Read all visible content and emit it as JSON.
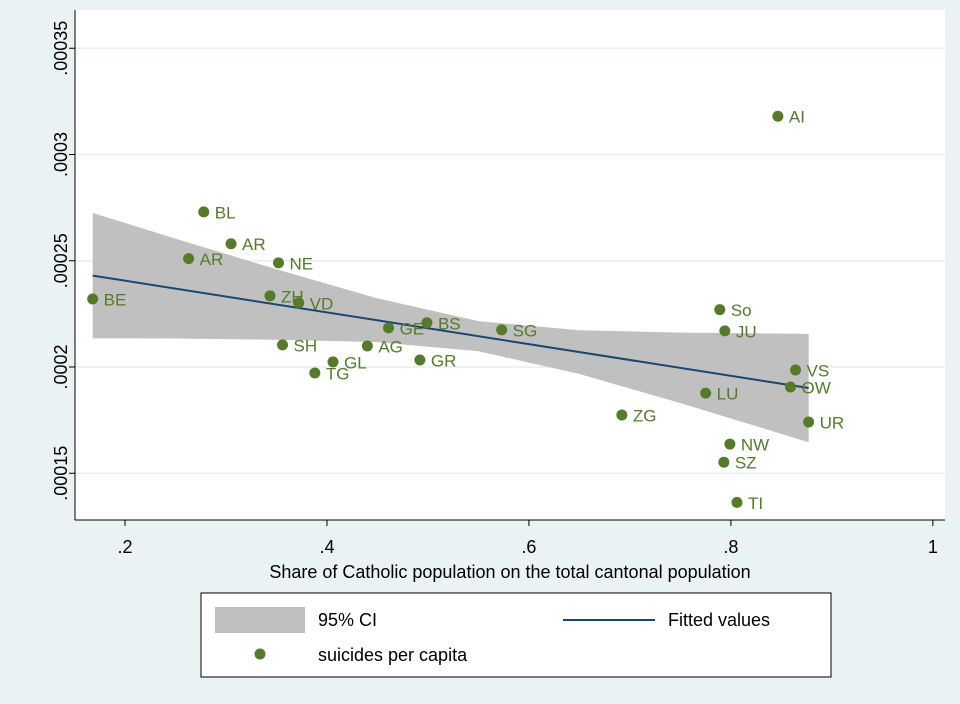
{
  "chart_data": {
    "type": "scatter",
    "x_label": "Share of Catholic population on the total cantonal population",
    "xlim": [
      0.1505,
      1.012
    ],
    "ylim": [
      0.000128,
      0.000368
    ],
    "xticks": [
      {
        "value": 0.2,
        "label": ".2"
      },
      {
        "value": 0.4,
        "label": ".4"
      },
      {
        "value": 0.6,
        "label": ".6"
      },
      {
        "value": 0.8,
        "label": ".8"
      },
      1
    ],
    "yticks": [
      {
        "value": 0.00015,
        "label": ".00015"
      },
      {
        "value": 0.0002,
        "label": ".0002"
      },
      {
        "value": 0.00025,
        "label": ".00025"
      },
      {
        "value": 0.0003,
        "label": ".0003"
      },
      {
        "value": 0.00035,
        "label": ".00035"
      }
    ],
    "grid": true,
    "ci": {
      "name": "95% CI",
      "color": "#c0c0c0",
      "x": [
        0.168,
        0.25,
        0.35,
        0.45,
        0.55,
        0.65,
        0.75,
        0.877
      ],
      "upper": [
        0.0002725,
        0.0002604,
        0.000246,
        0.0002323,
        0.0002216,
        0.0002173,
        0.0002162,
        0.0002156
      ],
      "lower": [
        0.0002135,
        0.0002134,
        0.0002128,
        0.0002117,
        0.0002074,
        0.0001967,
        0.000183,
        0.0001646
      ]
    },
    "fitted": {
      "name": "Fitted values",
      "color": "#1a476f",
      "x": [
        0.168,
        0.877
      ],
      "values": [
        0.000243,
        0.0001901
      ]
    },
    "points": {
      "name": "suicides per capita",
      "color": "#557a2a",
      "labels": [
        "AI",
        "BL",
        "AR",
        "AR",
        "NE",
        "BE",
        "ZH",
        "VD",
        "So",
        "JU",
        "BS",
        "GE",
        "SG",
        "SH",
        "AG",
        "GL",
        "GR",
        "TG",
        "VS",
        "OW",
        "LU",
        "ZG",
        "UR",
        "NW",
        "SZ",
        "TI"
      ],
      "x": [
        0.8465,
        0.278,
        0.305,
        0.263,
        0.352,
        0.168,
        0.3436,
        0.372,
        0.789,
        0.794,
        0.499,
        0.461,
        0.573,
        0.356,
        0.44,
        0.406,
        0.492,
        0.388,
        0.864,
        0.859,
        0.775,
        0.692,
        0.877,
        0.799,
        0.793,
        0.806
      ],
      "values": [
        0.000318,
        0.000273,
        0.000258,
        0.000251,
        0.000249,
        0.000232,
        0.0002335,
        0.0002302,
        0.000227,
        0.000217,
        0.0002208,
        0.0002184,
        0.0002175,
        0.0002104,
        0.0002099,
        0.0002024,
        0.0002033,
        0.0001972,
        0.0001986,
        0.0001906,
        0.0001877,
        0.0001774,
        0.0001741,
        0.0001637,
        0.0001552,
        0.0001363
      ]
    }
  }
}
